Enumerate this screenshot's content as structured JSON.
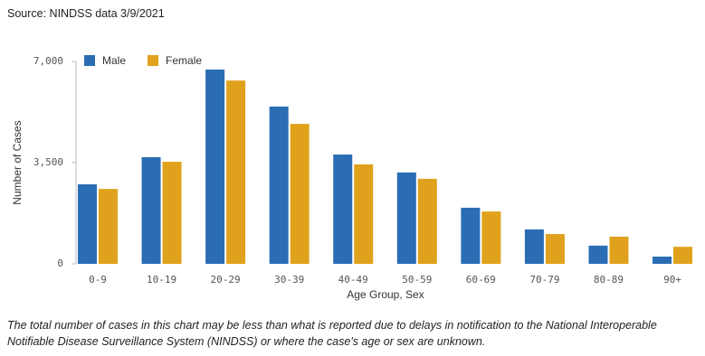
{
  "chart_data": {
    "type": "bar",
    "source": "Source: NINDSS data 3/9/2021",
    "x_label": "Age Group, Sex",
    "y_label": "Number of Cases",
    "categories": [
      "0-9",
      "10-19",
      "20-29",
      "30-39",
      "40-49",
      "50-59",
      "60-69",
      "70-79",
      "80-89",
      "90+"
    ],
    "series": [
      {
        "name": "Male",
        "color": "#2a6db5",
        "values": [
          2750,
          3690,
          6720,
          5440,
          3780,
          3160,
          1940,
          1190,
          630,
          250
        ]
      },
      {
        "name": "Female",
        "color": "#e0a21d",
        "values": [
          2590,
          3530,
          6340,
          4840,
          3440,
          2940,
          1810,
          1030,
          940,
          590
        ]
      }
    ],
    "ylim": [
      0,
      7000
    ],
    "yticks": [
      0,
      {
        "value": 3500,
        "label": "3,500"
      },
      {
        "value": 7000,
        "label": "7,000"
      }
    ],
    "legend": "top-left",
    "footnote": [
      "The total number of cases in this chart may be less than what is reported due to delays in notification to the National Interoperable",
      "Notifiable Disease Surveillance System (NINDSS) or where the case's age or sex are unknown."
    ]
  }
}
